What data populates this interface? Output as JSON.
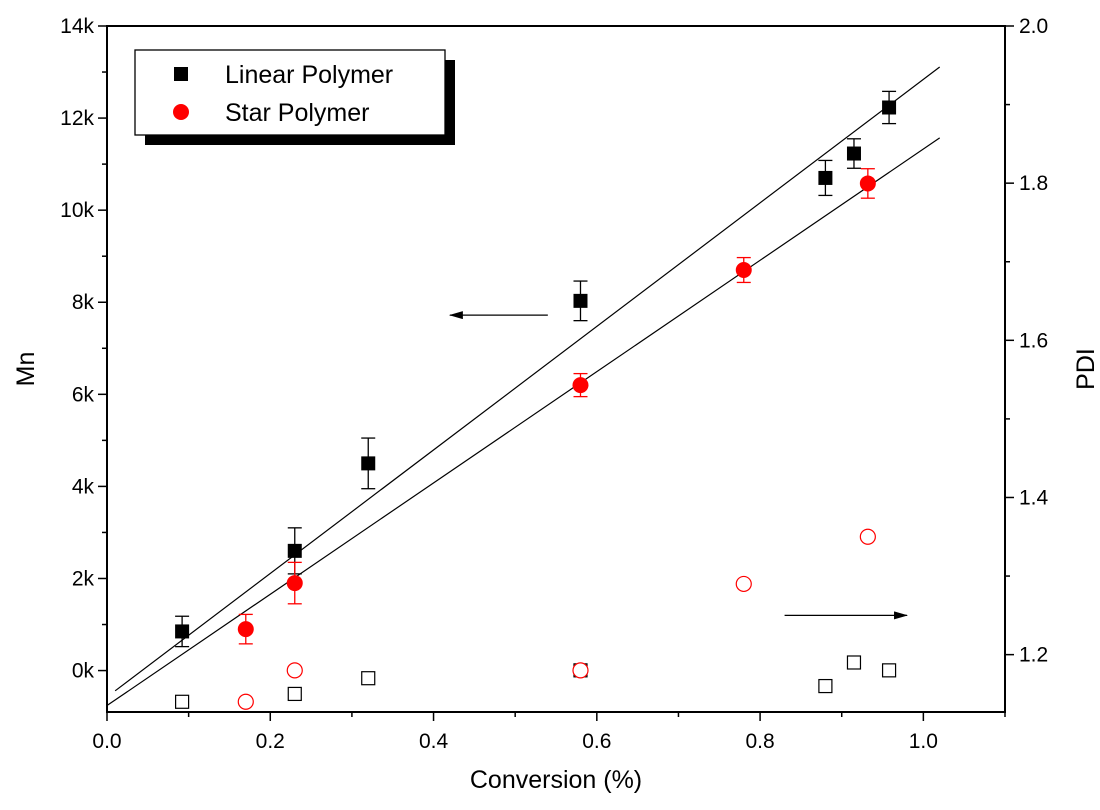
{
  "chart_data": {
    "type": "scatter",
    "title": "",
    "xlabel": "Conversion (%)",
    "ylabel": "Mn",
    "y2label": "PDI",
    "xlim": [
      0.0,
      1.1
    ],
    "ylim": [
      -900,
      14000
    ],
    "y2lim": [
      1.127,
      2.0
    ],
    "xticks": [
      0.0,
      0.2,
      0.4,
      0.6,
      0.8,
      1.0
    ],
    "xtick_labels": [
      "0.0",
      "0.2",
      "0.4",
      "0.6",
      "0.8",
      "1.0"
    ],
    "yticks": [
      0,
      2000,
      4000,
      6000,
      8000,
      10000,
      12000,
      14000
    ],
    "ytick_labels": [
      "0k",
      "2k",
      "4k",
      "6k",
      "8k",
      "10k",
      "12k",
      "14k"
    ],
    "y2ticks": [
      1.2,
      1.4,
      1.6,
      1.8,
      2.0
    ],
    "y2tick_labels": [
      "1.2",
      "1.4",
      "1.6",
      "1.8",
      "2.0"
    ],
    "grid": false,
    "legend_position": "top-left",
    "series": [
      {
        "name": "Linear Polymer",
        "axis": "left",
        "marker": "square-filled",
        "color": "#000000",
        "x": [
          0.092,
          0.23,
          0.32,
          0.58,
          0.88,
          0.915,
          0.958
        ],
        "y": [
          850,
          2600,
          4500,
          8030,
          10700,
          11230,
          12230
        ],
        "err": [
          330,
          500,
          550,
          430,
          380,
          320,
          350
        ]
      },
      {
        "name": "Star Polymer",
        "axis": "left",
        "marker": "circle-filled",
        "color": "#ff0000",
        "x": [
          0.17,
          0.23,
          0.58,
          0.78,
          0.932
        ],
        "y": [
          900,
          1900,
          6200,
          8700,
          10580
        ],
        "err": [
          320,
          450,
          250,
          270,
          320
        ]
      },
      {
        "axis": "right",
        "marker": "square-open",
        "color": "#000000",
        "x": [
          0.092,
          0.23,
          0.32,
          0.58,
          0.88,
          0.915,
          0.958
        ],
        "y": [
          1.14,
          1.15,
          1.17,
          1.18,
          1.16,
          1.19,
          1.18
        ]
      },
      {
        "axis": "right",
        "marker": "circle-open",
        "color": "#ff0000",
        "x": [
          0.17,
          0.23,
          0.58,
          0.78,
          0.932
        ],
        "y": [
          1.14,
          1.18,
          1.18,
          1.29,
          1.35
        ]
      }
    ],
    "fit_lines": [
      {
        "for": "Linear Polymer",
        "x": [
          0.01,
          1.02
        ],
        "y": [
          -440,
          13110
        ]
      },
      {
        "for": "Star Polymer",
        "x": [
          0.0,
          1.02
        ],
        "y": [
          -760,
          11570
        ]
      }
    ],
    "annotations": [
      {
        "type": "arrow",
        "direction": "left",
        "points_to": "left axis",
        "x": [
          0.54,
          0.42
        ],
        "y": [
          7720,
          7720
        ]
      },
      {
        "type": "arrow",
        "direction": "right",
        "points_to": "right axis",
        "x": [
          0.83,
          0.98
        ],
        "y": [
          1.25,
          1.25
        ]
      }
    ]
  }
}
